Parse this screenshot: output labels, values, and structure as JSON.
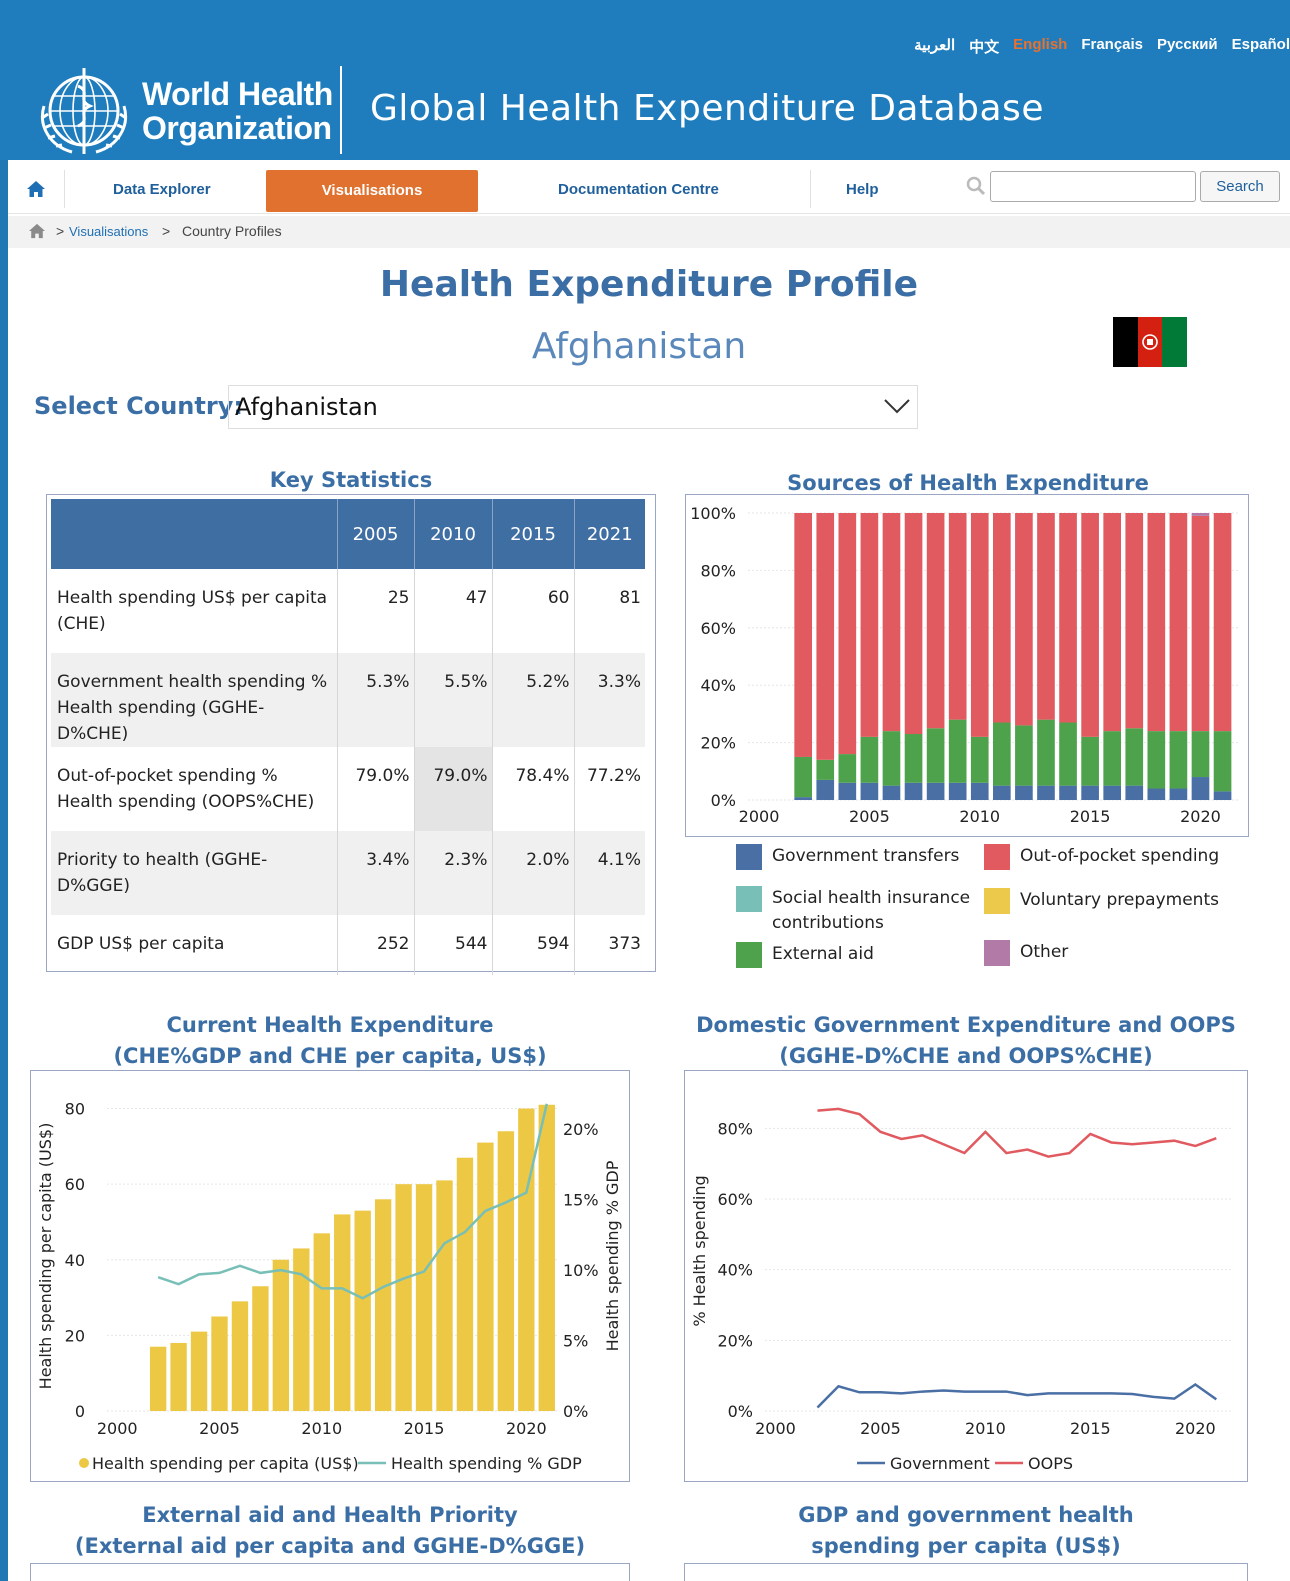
{
  "languages": [
    {
      "label": "العربية",
      "active": false
    },
    {
      "label": "中文",
      "active": false
    },
    {
      "label": "English",
      "active": true
    },
    {
      "label": "Français",
      "active": false
    },
    {
      "label": "Русский",
      "active": false
    },
    {
      "label": "Español",
      "active": false
    }
  ],
  "logo": {
    "line1": "World Health",
    "line2": "Organization"
  },
  "site_title": "Global Health Expenditure Database",
  "nav": {
    "home_icon": "home-icon",
    "items": [
      "Data Explorer",
      "Visualisations",
      "Documentation Centre",
      "Help"
    ],
    "active": "Visualisations",
    "search_button": "Search",
    "search_placeholder": ""
  },
  "breadcrumb": {
    "sep1": ">",
    "link": "Visualisations",
    "sep2": ">",
    "current": "Country Profiles"
  },
  "page_title": "Health Expenditure Profile",
  "country": "Afghanistan",
  "select": {
    "label": "Select Country:",
    "value": "Afghanistan"
  },
  "key_statistics": {
    "title": "Key Statistics",
    "years": [
      "2005",
      "2010",
      "2015",
      "2021"
    ],
    "rows": [
      {
        "label": "Health spending US$ per capita (CHE)",
        "values": [
          "25",
          "47",
          "60",
          "81"
        ]
      },
      {
        "label": "Government health spending % Health spending (GGHE-D%CHE)",
        "values": [
          "5.3%",
          "5.5%",
          "5.2%",
          "3.3%"
        ]
      },
      {
        "label": "Out-of-pocket spending % Health spending (OOPS%CHE)",
        "values": [
          "79.0%",
          "79.0%",
          "78.4%",
          "77.2%"
        ]
      },
      {
        "label": "Priority to health (GGHE-D%GGE)",
        "values": [
          "3.4%",
          "2.3%",
          "2.0%",
          "4.1%"
        ]
      },
      {
        "label": "GDP US$ per capita",
        "values": [
          "252",
          "544",
          "594",
          "373"
        ]
      }
    ]
  },
  "sources_chart": {
    "title": "Sources of Health Expenditure",
    "legend": [
      {
        "label": "Government transfers",
        "color": "#4a6fa5"
      },
      {
        "label": "Out-of-pocket spending",
        "color": "#e05a5f"
      },
      {
        "label": "Social health insurance contributions",
        "color": "#77bfb7"
      },
      {
        "label": "Voluntary prepayments",
        "color": "#ecc94b"
      },
      {
        "label": "External aid",
        "color": "#4ea24b"
      },
      {
        "label": "Other",
        "color": "#b27aa6"
      }
    ]
  },
  "che_chart": {
    "title_line1": "Current Health Expenditure",
    "title_line2": "(CHE%GDP and CHE per capita, US$)",
    "legend_bar": "Health spending per capita (US$)",
    "legend_line": "Health spending % GDP"
  },
  "gov_chart": {
    "title_line1": "Domestic Government Expenditure and OOPS",
    "title_line2": "(GGHE-D%CHE and OOPS%CHE)",
    "legend_gov": "Government",
    "legend_oops": "OOPS"
  },
  "bottom_titles": {
    "left_line1": "External aid and Health Priority",
    "left_line2": "(External aid per capita and GGHE-D%GGE)",
    "right_line1": "GDP and government health",
    "right_line2": "spending per capita (US$)"
  },
  "chart_data": [
    {
      "type": "bar",
      "name": "Sources of Health Expenditure",
      "stacked": true,
      "x": [
        2002,
        2003,
        2004,
        2005,
        2006,
        2007,
        2008,
        2009,
        2010,
        2011,
        2012,
        2013,
        2014,
        2015,
        2016,
        2017,
        2018,
        2019,
        2020,
        2021
      ],
      "series": [
        {
          "name": "Government transfers",
          "values": [
            1,
            7,
            6,
            6,
            5,
            6,
            6,
            6,
            6,
            5,
            5,
            5,
            5,
            5,
            5,
            5,
            4,
            4,
            8,
            3
          ]
        },
        {
          "name": "External aid",
          "values": [
            14,
            7,
            10,
            16,
            19,
            17,
            19,
            22,
            16,
            22,
            21,
            23,
            22,
            17,
            19,
            20,
            20,
            20,
            16,
            21
          ]
        },
        {
          "name": "Out-of-pocket spending",
          "values": [
            85,
            86,
            84,
            78,
            76,
            77,
            75,
            72,
            78,
            73,
            74,
            72,
            73,
            78,
            76,
            75,
            76,
            76,
            75,
            76
          ]
        },
        {
          "name": "Other",
          "values": [
            0,
            0,
            0,
            0,
            0,
            0,
            0,
            0,
            0,
            0,
            0,
            0,
            0,
            0,
            0,
            0,
            0,
            0,
            1,
            0
          ]
        }
      ],
      "xticks": [
        2000,
        2005,
        2010,
        2015,
        2020
      ],
      "ylim": [
        0,
        100
      ],
      "yticks": [
        "0%",
        "20%",
        "40%",
        "60%",
        "80%",
        "100%"
      ]
    },
    {
      "type": "bar",
      "name": "Current Health Expenditure",
      "x": [
        2002,
        2003,
        2004,
        2005,
        2006,
        2007,
        2008,
        2009,
        2010,
        2011,
        2012,
        2013,
        2014,
        2015,
        2016,
        2017,
        2018,
        2019,
        2020,
        2021
      ],
      "series": [
        {
          "name": "Health spending per capita (US$)",
          "type": "bar",
          "axis": "left",
          "values": [
            17,
            18,
            21,
            25,
            29,
            33,
            40,
            43,
            47,
            52,
            53,
            56,
            60,
            60,
            61,
            67,
            71,
            74,
            80,
            81
          ]
        },
        {
          "name": "Health spending % GDP",
          "type": "line",
          "axis": "right",
          "values": [
            9.5,
            9.0,
            9.7,
            9.8,
            10.3,
            9.8,
            10.0,
            9.7,
            8.7,
            8.7,
            8.0,
            8.8,
            9.4,
            9.9,
            11.9,
            12.7,
            14.2,
            14.8,
            15.5,
            21.8
          ]
        }
      ],
      "xticks": [
        2000,
        2005,
        2010,
        2015,
        2020
      ],
      "ylabel": "Health spending per capita (US$)",
      "ylabel_right": "Health spending % GDP",
      "ylim": [
        0,
        82
      ],
      "yticks": [
        "0",
        "20",
        "40",
        "60",
        "80"
      ],
      "ylim_right": [
        0,
        22
      ],
      "yticks_right": [
        "0%",
        "5%",
        "10%",
        "15%",
        "20%"
      ]
    },
    {
      "type": "line",
      "name": "Domestic Government Expenditure and OOPS",
      "x": [
        2002,
        2003,
        2004,
        2005,
        2006,
        2007,
        2008,
        2009,
        2010,
        2011,
        2012,
        2013,
        2014,
        2015,
        2016,
        2017,
        2018,
        2019,
        2020,
        2021
      ],
      "series": [
        {
          "name": "Government",
          "values": [
            1,
            7,
            5.3,
            5.3,
            5,
            5.5,
            5.8,
            5.5,
            5.5,
            5.5,
            4.5,
            5,
            5,
            5,
            5,
            4.8,
            4,
            3.5,
            7.5,
            3.3
          ]
        },
        {
          "name": "OOPS",
          "values": [
            85,
            85.5,
            84,
            79,
            77,
            78,
            75.5,
            73,
            79,
            73,
            74,
            72,
            73,
            78.4,
            76,
            75.5,
            76,
            76.5,
            75,
            77.2
          ]
        }
      ],
      "xticks": [
        2000,
        2005,
        2010,
        2015,
        2020
      ],
      "ylabel": "% Health spending",
      "ylim": [
        0,
        90
      ],
      "yticks": [
        "0%",
        "20%",
        "40%",
        "60%",
        "80%"
      ]
    }
  ]
}
